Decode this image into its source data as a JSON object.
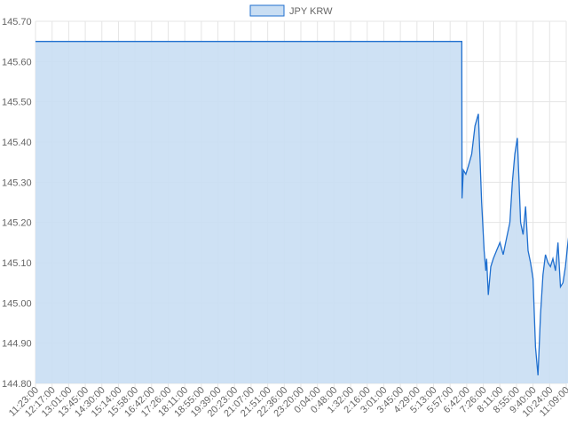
{
  "chart_data": {
    "type": "area",
    "legend": {
      "position": "top",
      "label": "JPY KRW"
    },
    "colors": {
      "line": "#1f6fcf",
      "fill": "#c9def3",
      "grid": "#e5e5e5"
    },
    "grid": true,
    "ylim": [
      144.8,
      145.7
    ],
    "y_ticks": [
      "145.70",
      "145.60",
      "145.50",
      "145.40",
      "145.30",
      "145.20",
      "145.10",
      "145.00",
      "144.90",
      "144.80"
    ],
    "x_ticks": [
      "11:23:00",
      "12:17:00",
      "13:01:00",
      "13:45:00",
      "14:30:00",
      "15:14:00",
      "15:58:00",
      "16:42:00",
      "17:26:00",
      "18:11:00",
      "18:55:00",
      "19:39:00",
      "20:23:00",
      "21:07:00",
      "21:51:00",
      "22:36:00",
      "23:20:00",
      "0:04:00",
      "0:48:00",
      "1:32:00",
      "2:16:00",
      "3:01:00",
      "3:45:00",
      "4:29:00",
      "5:13:00",
      "5:57:00",
      "6:42:00",
      "7:26:00",
      "8:11:00",
      "8:55:00",
      "9:40:00",
      "10:24:00",
      "11:09:00"
    ],
    "series": [
      {
        "name": "JPY KRW",
        "x": [
          0,
          25.7,
          25.72,
          25.8,
          25.95,
          26.1,
          26.3,
          26.5,
          26.7,
          26.9,
          27.05,
          27.15,
          27.2,
          27.3,
          27.45,
          27.6,
          27.8,
          28.0,
          28.2,
          28.4,
          28.6,
          28.75,
          28.9,
          29.05,
          29.15,
          29.25,
          29.4,
          29.55,
          29.7,
          29.85,
          30.0,
          30.15,
          30.3,
          30.45,
          30.6,
          30.75,
          30.9,
          31.05,
          31.2,
          31.35,
          31.5,
          31.65,
          31.8,
          31.95,
          32.1,
          32.25,
          32.4,
          32.55,
          32.7,
          32.85,
          33.0
        ],
        "y": [
          145.65,
          145.65,
          145.26,
          145.33,
          145.32,
          145.34,
          145.37,
          145.44,
          145.47,
          145.25,
          145.13,
          145.08,
          145.11,
          145.02,
          145.09,
          145.11,
          145.13,
          145.15,
          145.12,
          145.16,
          145.2,
          145.3,
          145.37,
          145.41,
          145.31,
          145.2,
          145.17,
          145.24,
          145.13,
          145.1,
          145.06,
          144.89,
          144.82,
          144.97,
          145.07,
          145.12,
          145.1,
          145.09,
          145.11,
          145.08,
          145.15,
          145.04,
          145.05,
          145.09,
          145.15,
          145.2,
          145.28,
          145.13,
          145.15,
          145.11,
          145.07
        ]
      }
    ]
  }
}
